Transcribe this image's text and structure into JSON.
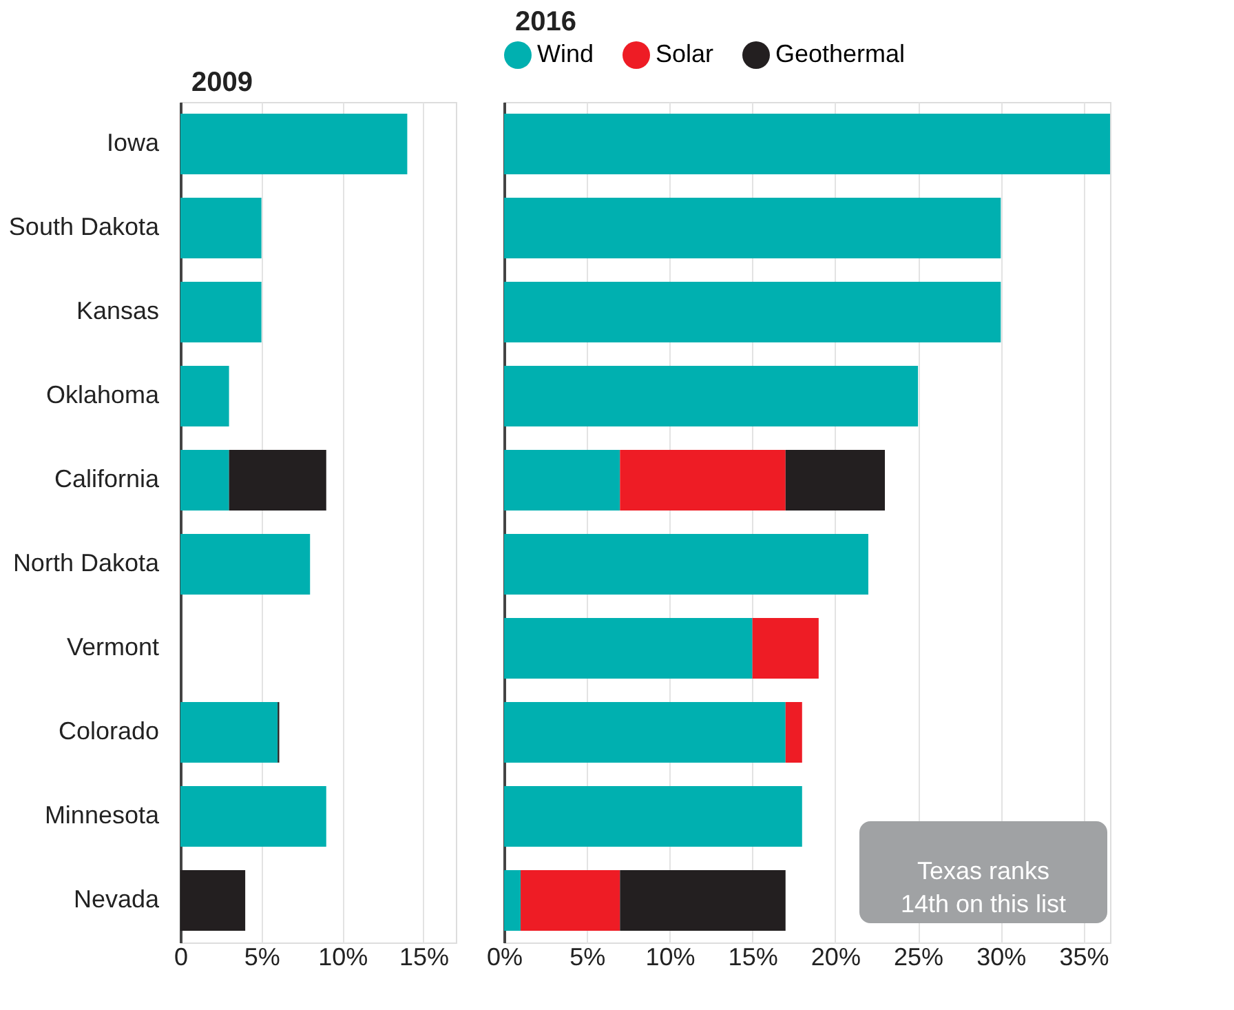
{
  "chart_data": [
    {
      "type": "bar",
      "orientation": "horizontal",
      "stacked": true,
      "title": "2009",
      "categories": [
        "Iowa",
        "South Dakota",
        "Kansas",
        "Oklahoma",
        "California",
        "North Dakota",
        "Vermont",
        "Colorado",
        "Minnesota",
        "Nevada"
      ],
      "series": [
        {
          "color": "#00b0b0",
          "values": [
            14,
            5,
            5,
            3,
            3,
            8,
            0,
            6,
            9,
            0
          ]
        },
        {
          "color": "#ee1c25",
          "values": [
            0,
            0,
            0,
            0,
            0,
            0,
            0,
            0,
            0,
            0
          ]
        },
        {
          "color": "#231f20",
          "values": [
            0,
            0,
            0,
            0,
            6,
            0,
            0,
            0.1,
            0,
            4
          ]
        }
      ],
      "xlim": [
        0,
        17
      ],
      "xticks": [
        0,
        {
          "value": 5,
          "label": "5%"
        },
        {
          "value": 10,
          "label": "10%"
        },
        {
          "value": 15,
          "label": "15%"
        }
      ],
      "grid": "x",
      "legend": false
    },
    {
      "type": "bar",
      "orientation": "horizontal",
      "stacked": true,
      "title": "2016",
      "categories": [
        null,
        null,
        null,
        null,
        null,
        null,
        null,
        null,
        null,
        null
      ],
      "series": [
        {
          "name": "Wind",
          "color": "#00b0b0",
          "values": [
            36.6,
            30,
            30,
            25,
            7,
            22,
            15,
            17,
            18,
            1
          ]
        },
        {
          "name": "Solar",
          "color": "#ee1c25",
          "values": [
            0,
            0,
            0,
            0,
            10,
            0,
            4,
            1,
            0,
            6
          ]
        },
        {
          "name": "Geothermal",
          "color": "#231f20",
          "values": [
            0,
            0,
            0,
            0,
            6,
            0,
            0,
            0,
            0,
            10
          ]
        }
      ],
      "xlim": [
        0,
        36.6
      ],
      "xticks": [
        {
          "value": 0,
          "label": "0%"
        },
        {
          "value": 5,
          "label": "5%"
        },
        {
          "value": 10,
          "label": "10%"
        },
        {
          "value": 15,
          "label": "15%"
        },
        {
          "value": 20,
          "label": "20%"
        },
        {
          "value": 25,
          "label": "25%"
        },
        {
          "value": 30,
          "label": "30%"
        },
        {
          "value": 35,
          "label": "35%"
        }
      ],
      "grid": "x",
      "legend": "top",
      "tick_labels": "x",
      "annotations": [
        "Texas ranks 14th on this list"
      ]
    }
  ]
}
